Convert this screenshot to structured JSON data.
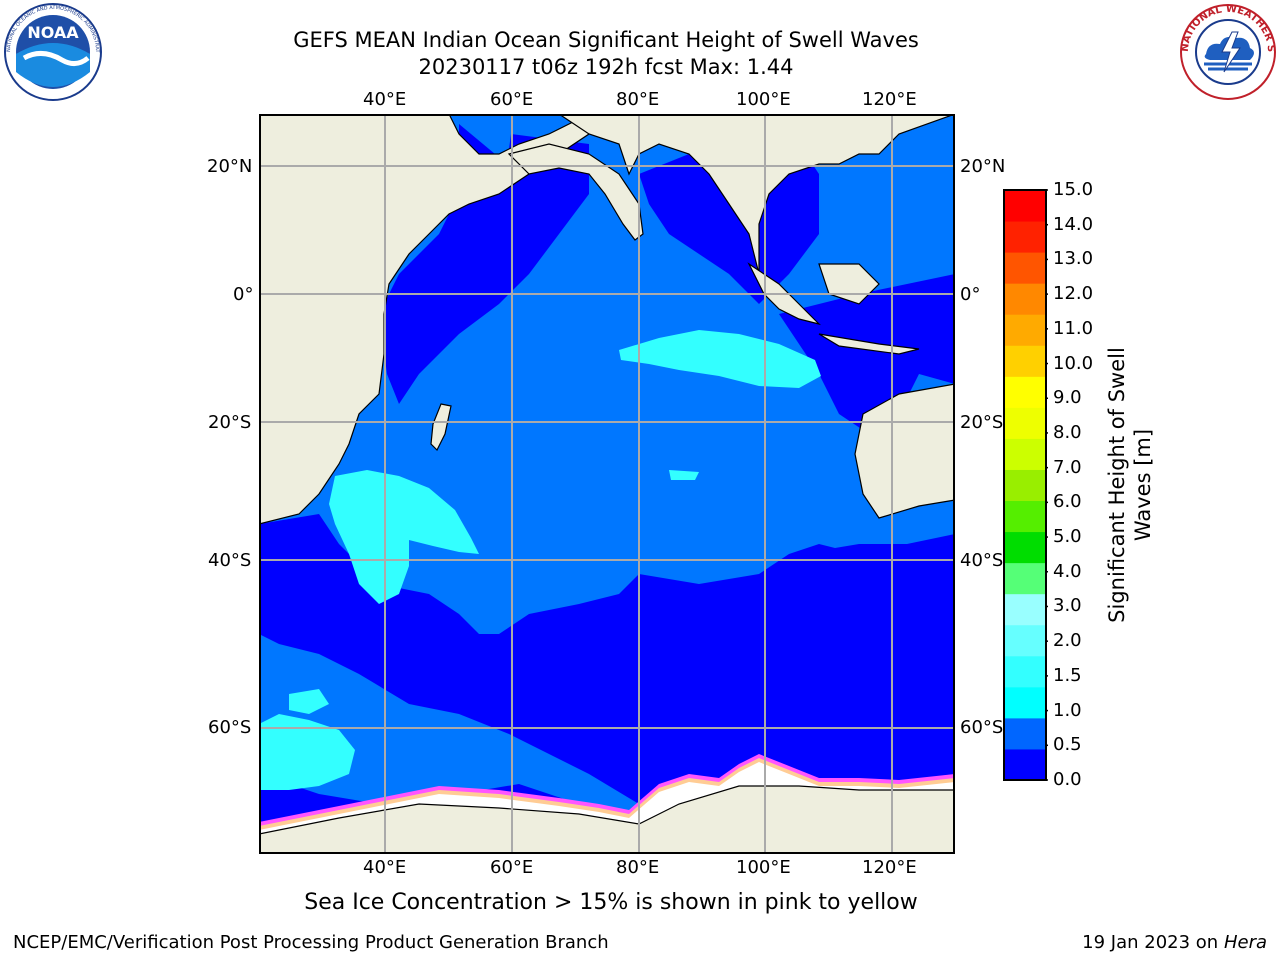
{
  "title_line1": "GEFS MEAN Indian Ocean Significant Height of Swell Waves",
  "title_line2": "20230117 t06z 192h fcst   Max: 1.44",
  "top_lon_labels": [
    "40°E",
    "60°E",
    "80°E",
    "100°E",
    "120°E"
  ],
  "bottom_lon_labels": [
    "40°E",
    "60°E",
    "80°E",
    "100°E",
    "120°E"
  ],
  "left_lat_labels": [
    "20°N",
    "0°",
    "20°S",
    "40°S",
    "60°S"
  ],
  "right_lat_labels": [
    "20°N",
    "0°",
    "20°S",
    "40°S",
    "60°S"
  ],
  "colorbar": {
    "ticks": [
      "0.0",
      "0.5",
      "1.0",
      "1.5",
      "2.0",
      "3.0",
      "4.0",
      "5.0",
      "6.0",
      "7.0",
      "8.0",
      "9.0",
      "10.0",
      "11.0",
      "12.0",
      "13.0",
      "14.0",
      "15.0"
    ],
    "colors": [
      "#0000ff",
      "#0066ff",
      "#00ffff",
      "#33ffff",
      "#66ffff",
      "#99ffff",
      "#55ff77",
      "#00dd00",
      "#55ee00",
      "#99ee00",
      "#ccff00",
      "#eeff00",
      "#ffff00",
      "#ffd000",
      "#ffaa00",
      "#ff8800",
      "#ff5500",
      "#ff2200",
      "#ff0000"
    ],
    "label_line1": "Significant Height of Swell",
    "label_line2": "Waves [m]"
  },
  "sea_ice_note": "Sea Ice Concentration > 15% is shown in pink to yellow",
  "footer_left": "NCEP/EMC/Verification Post Processing Product Generation Branch",
  "footer_right_date": "19 Jan 2023 on ",
  "footer_right_host": "Hera",
  "logos": {
    "noaa_text": "NOAA",
    "noaa_ring_text": "NATIONAL OCEANIC AND ATMOSPHERIC ADMINISTRATION · U.S. DEPARTMENT OF COMMERCE",
    "nws_ring_text": "NATIONAL WEATHER SERVICE"
  },
  "map_colors": {
    "land": "#eeeede",
    "deep_blue": "#0000ff",
    "mid_blue": "#0077ff",
    "cyan": "#33ffff",
    "ice_pink": "#ff55ff",
    "grid": "#aaaaaa"
  }
}
